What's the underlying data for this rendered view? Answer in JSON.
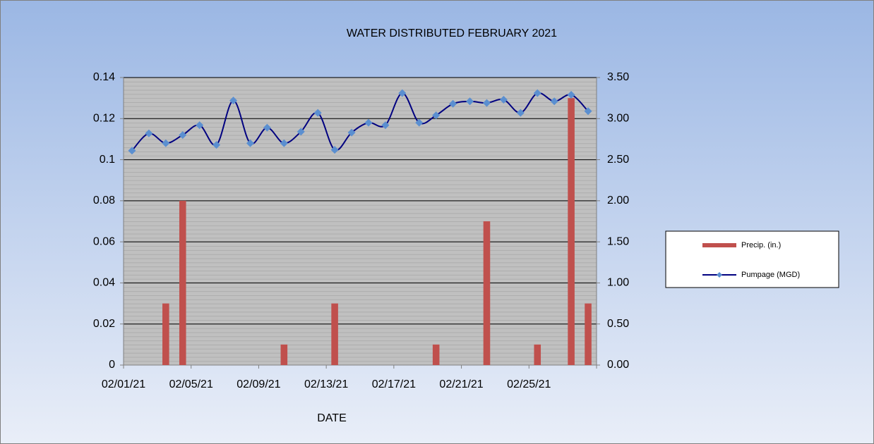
{
  "chart_data": {
    "type": "combo",
    "title": "WATER DISTRIBUTED FEBRUARY 2021",
    "x_label": "DATE",
    "categories": [
      "02/01/21",
      null,
      null,
      null,
      "02/05/21",
      null,
      null,
      null,
      "02/09/21",
      null,
      null,
      null,
      "02/13/21",
      null,
      null,
      null,
      "02/17/21",
      null,
      null,
      null,
      "02/21/21",
      null,
      null,
      null,
      "02/25/21",
      null,
      null,
      null
    ],
    "ylim": [
      0,
      0.14
    ],
    "yticks": [
      0,
      0.02,
      0.04,
      0.06,
      0.08,
      0.1,
      0.12,
      0.14
    ],
    "y2lim": [
      0,
      3.5
    ],
    "y2ticks": [
      {
        "value": 0,
        "label": "0.00"
      },
      {
        "value": 0.5,
        "label": "0.50"
      },
      {
        "value": 1,
        "label": "1.00"
      },
      {
        "value": 1.5,
        "label": "1.50"
      },
      {
        "value": 2,
        "label": "2.00"
      },
      {
        "value": 2.5,
        "label": "2.50"
      },
      {
        "value": 3,
        "label": "3.00"
      },
      {
        "value": 3.5,
        "label": "3.50"
      }
    ],
    "grid": true,
    "legend": "right",
    "series": [
      {
        "name": "Precip. (in.)",
        "type": "bar",
        "color": "#c0504d",
        "values": [
          0,
          0,
          0.03,
          0.08,
          0,
          0,
          0,
          0,
          0,
          0.01,
          0,
          0,
          0.03,
          0,
          0,
          0,
          0,
          0,
          0.01,
          0,
          0,
          0.07,
          0,
          0,
          0.01,
          0,
          0.13,
          0.03
        ]
      },
      {
        "name": "Pumpage (MGD)",
        "type": "line",
        "axis": "y2",
        "color": "#000080",
        "marker_color": "#5b8fd0",
        "values": [
          2.61,
          2.82,
          2.7,
          2.8,
          2.92,
          2.68,
          3.22,
          2.7,
          2.89,
          2.7,
          2.84,
          3.07,
          2.62,
          2.83,
          2.95,
          2.92,
          3.31,
          2.95,
          3.04,
          3.18,
          3.21,
          3.19,
          3.23,
          3.07,
          3.31,
          3.21,
          3.29,
          3.09
        ]
      }
    ]
  }
}
